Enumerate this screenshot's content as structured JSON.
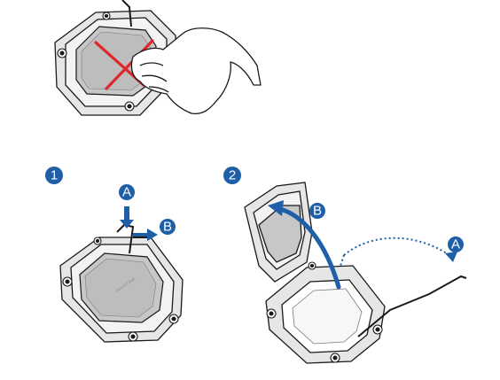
{
  "colors": {
    "badge": "#1f5fa8",
    "arrow": "#1f5fa8",
    "cross": "#e0262b",
    "outline": "#1a1a1a",
    "cpu": "#c7c7c7",
    "frame": "#e6e6e6"
  },
  "top_panel": {
    "cross_mark": "incorrect-removal",
    "icon": "hand-icon"
  },
  "steps": [
    {
      "number": "1",
      "arrows": [
        {
          "letter": "A"
        },
        {
          "letter": "B"
        }
      ]
    },
    {
      "number": "2",
      "arrows": [
        {
          "letter": "B"
        },
        {
          "letter": "A"
        }
      ]
    }
  ],
  "chip_marking": {
    "line1": "SOCKET AM5",
    "line2": "LGA1700"
  }
}
